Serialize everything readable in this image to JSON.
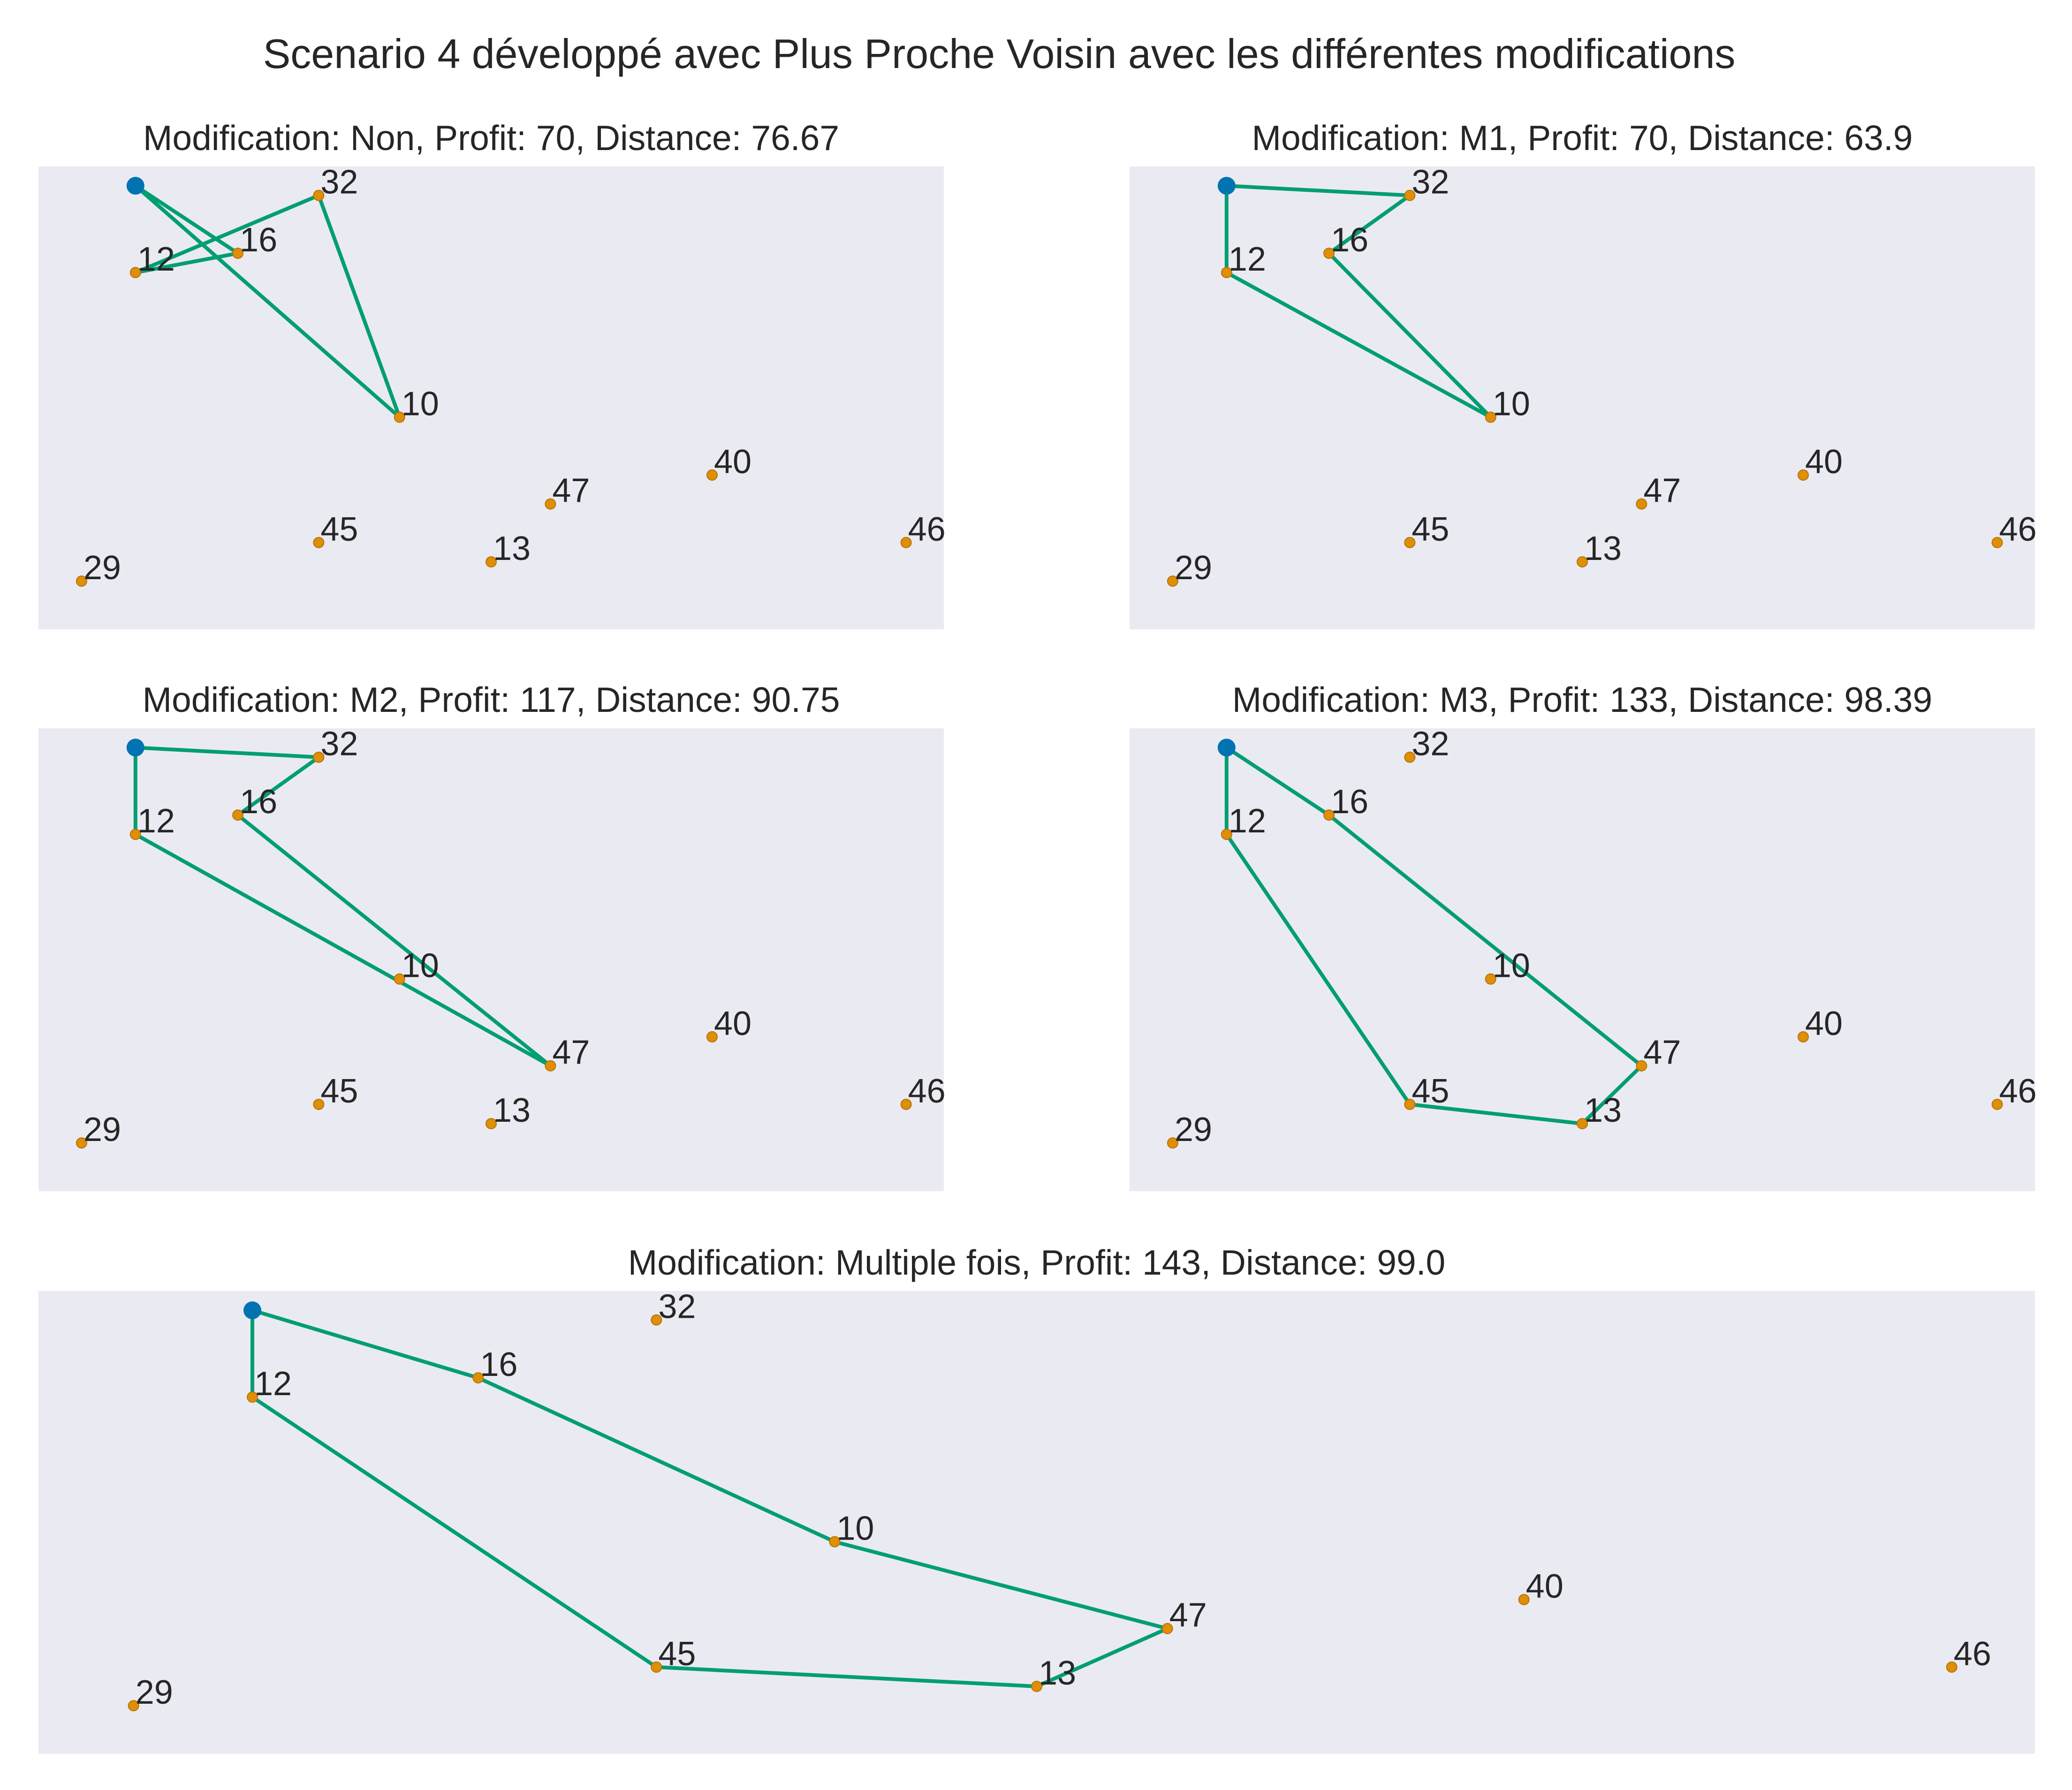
{
  "title": "Scenario 4 développé avec Plus Proche Voisin avec les différentes modifications",
  "colors": {
    "background": "#eaeaf2",
    "route": "#029e73",
    "client": "#de8f05",
    "depot": "#0173b2",
    "text": "#262626"
  },
  "chart_data": [
    {
      "type": "scatter",
      "title": "Modification: Non, Profit: 70, Distance: 76.67",
      "modification": "Non",
      "profit": 70,
      "distance": 76.67,
      "depot": [
        1.0,
        9.0
      ],
      "points": [
        {
          "id": "32",
          "x": 4.4,
          "y": 8.8
        },
        {
          "id": "16",
          "x": 2.9,
          "y": 7.6
        },
        {
          "id": "12",
          "x": 1.0,
          "y": 7.2
        },
        {
          "id": "10",
          "x": 5.9,
          "y": 4.2
        },
        {
          "id": "47",
          "x": 8.7,
          "y": 2.4
        },
        {
          "id": "40",
          "x": 11.7,
          "y": 3.0
        },
        {
          "id": "45",
          "x": 4.4,
          "y": 1.6
        },
        {
          "id": "13",
          "x": 7.6,
          "y": 1.2
        },
        {
          "id": "46",
          "x": 15.3,
          "y": 1.6
        },
        {
          "id": "29",
          "x": 0.0,
          "y": 0.8
        }
      ],
      "route": [
        "depot",
        "10",
        "32",
        "12",
        "16",
        "depot"
      ]
    },
    {
      "type": "scatter",
      "title": "Modification: M1, Profit: 70, Distance: 63.9",
      "modification": "M1",
      "profit": 70,
      "distance": 63.9,
      "depot": [
        1.0,
        9.0
      ],
      "points": [
        {
          "id": "32",
          "x": 4.4,
          "y": 8.8
        },
        {
          "id": "16",
          "x": 2.9,
          "y": 7.6
        },
        {
          "id": "12",
          "x": 1.0,
          "y": 7.2
        },
        {
          "id": "10",
          "x": 5.9,
          "y": 4.2
        },
        {
          "id": "47",
          "x": 8.7,
          "y": 2.4
        },
        {
          "id": "40",
          "x": 11.7,
          "y": 3.0
        },
        {
          "id": "45",
          "x": 4.4,
          "y": 1.6
        },
        {
          "id": "13",
          "x": 7.6,
          "y": 1.2
        },
        {
          "id": "46",
          "x": 15.3,
          "y": 1.6
        },
        {
          "id": "29",
          "x": 0.0,
          "y": 0.8
        }
      ],
      "route": [
        "depot",
        "32",
        "16",
        "10",
        "12",
        "depot"
      ]
    },
    {
      "type": "scatter",
      "title": "Modification: M2, Profit: 117, Distance: 90.75",
      "modification": "M2",
      "profit": 117,
      "distance": 90.75,
      "depot": [
        1.0,
        9.0
      ],
      "points": [
        {
          "id": "32",
          "x": 4.4,
          "y": 8.8
        },
        {
          "id": "16",
          "x": 2.9,
          "y": 7.6
        },
        {
          "id": "12",
          "x": 1.0,
          "y": 7.2
        },
        {
          "id": "10",
          "x": 5.9,
          "y": 4.2
        },
        {
          "id": "47",
          "x": 8.7,
          "y": 2.4
        },
        {
          "id": "40",
          "x": 11.7,
          "y": 3.0
        },
        {
          "id": "45",
          "x": 4.4,
          "y": 1.6
        },
        {
          "id": "13",
          "x": 7.6,
          "y": 1.2
        },
        {
          "id": "46",
          "x": 15.3,
          "y": 1.6
        },
        {
          "id": "29",
          "x": 0.0,
          "y": 0.8
        }
      ],
      "route": [
        "depot",
        "32",
        "16",
        "47",
        "12",
        "depot"
      ]
    },
    {
      "type": "scatter",
      "title": "Modification: M3, Profit: 133, Distance: 98.39",
      "modification": "M3",
      "profit": 133,
      "distance": 98.39,
      "depot": [
        1.0,
        9.0
      ],
      "points": [
        {
          "id": "32",
          "x": 4.4,
          "y": 8.8
        },
        {
          "id": "16",
          "x": 2.9,
          "y": 7.6
        },
        {
          "id": "12",
          "x": 1.0,
          "y": 7.2
        },
        {
          "id": "10",
          "x": 5.9,
          "y": 4.2
        },
        {
          "id": "47",
          "x": 8.7,
          "y": 2.4
        },
        {
          "id": "40",
          "x": 11.7,
          "y": 3.0
        },
        {
          "id": "45",
          "x": 4.4,
          "y": 1.6
        },
        {
          "id": "13",
          "x": 7.6,
          "y": 1.2
        },
        {
          "id": "46",
          "x": 15.3,
          "y": 1.6
        },
        {
          "id": "29",
          "x": 0.0,
          "y": 0.8
        }
      ],
      "route": [
        "depot",
        "16",
        "47",
        "13",
        "45",
        "12",
        "depot"
      ]
    },
    {
      "type": "scatter",
      "title": "Modification: Multiple fois, Profit: 143, Distance: 99.0",
      "modification": "Multiple fois",
      "profit": 143,
      "distance": 99.0,
      "depot": [
        1.0,
        9.0
      ],
      "points": [
        {
          "id": "32",
          "x": 4.4,
          "y": 8.8
        },
        {
          "id": "16",
          "x": 2.9,
          "y": 7.6
        },
        {
          "id": "12",
          "x": 1.0,
          "y": 7.2
        },
        {
          "id": "10",
          "x": 5.9,
          "y": 4.2
        },
        {
          "id": "47",
          "x": 8.7,
          "y": 2.4
        },
        {
          "id": "40",
          "x": 11.7,
          "y": 3.0
        },
        {
          "id": "45",
          "x": 4.4,
          "y": 1.6
        },
        {
          "id": "13",
          "x": 7.6,
          "y": 1.2
        },
        {
          "id": "46",
          "x": 15.3,
          "y": 1.6
        },
        {
          "id": "29",
          "x": 0.0,
          "y": 0.8
        }
      ],
      "route": [
        "depot",
        "16",
        "10",
        "47",
        "13",
        "45",
        "12",
        "depot"
      ]
    }
  ]
}
